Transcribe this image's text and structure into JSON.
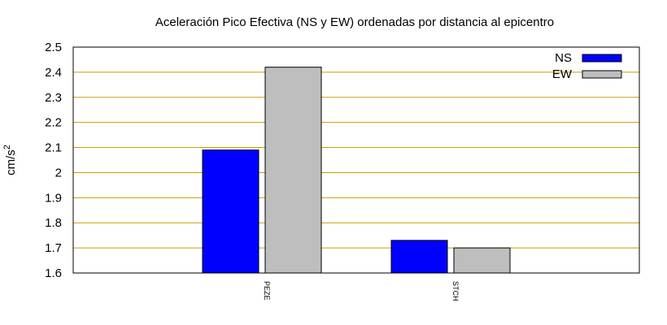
{
  "chart_data": {
    "type": "bar",
    "title": "Aceleración Pico Efectiva (NS y EW) ordenadas por distancia al epicentro",
    "ylabel_base": "cm/s",
    "ylabel_sup": "2",
    "xlabel": "",
    "categories": [
      "PEZE",
      "STCH"
    ],
    "series": [
      {
        "name": "NS",
        "values": [
          2.09,
          1.73
        ],
        "color": "#0000ff"
      },
      {
        "name": "EW",
        "values": [
          2.42,
          1.7
        ],
        "color": "#bebebe"
      }
    ],
    "ylim": [
      1.6,
      2.5
    ],
    "yticks": [
      "1.6",
      "1.7",
      "1.8",
      "1.9",
      "2",
      "2.1",
      "2.2",
      "2.3",
      "2.4",
      "2.5"
    ],
    "grid": true,
    "grid_color": "#c8a000",
    "legend_position": "top-right"
  }
}
